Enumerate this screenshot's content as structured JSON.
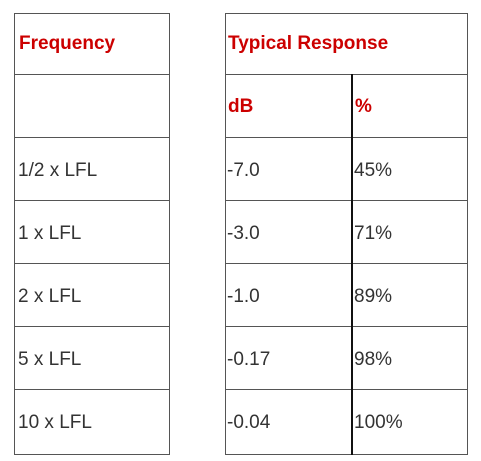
{
  "table": {
    "header": {
      "frequency": "Frequency",
      "typical_response": "Typical Response",
      "db": "dB",
      "percent": "%"
    },
    "rows": [
      {
        "frequency": "1/2 x LFL",
        "db": "-7.0",
        "percent": "45%"
      },
      {
        "frequency": "1 x LFL",
        "db": "-3.0",
        "percent": "71%"
      },
      {
        "frequency": "2 x LFL",
        "db": "-1.0",
        "percent": "89%"
      },
      {
        "frequency": "5 x LFL",
        "db": "-0.17",
        "percent": "98%"
      },
      {
        "frequency": "10 x LFL",
        "db": "-0.04",
        "percent": "100%"
      }
    ],
    "colors": {
      "header_text": "#cc0000",
      "body_text": "#333333",
      "border": "#555555"
    }
  }
}
